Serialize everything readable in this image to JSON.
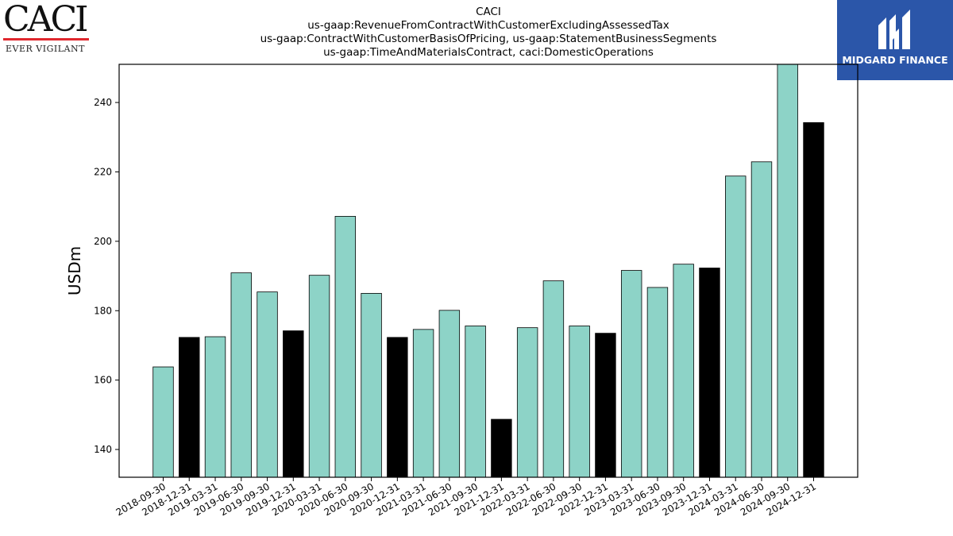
{
  "logos": {
    "left": {
      "wordmark": "CACI",
      "tagline": "EVER VIGILANT",
      "rule_color": "#e0282e"
    },
    "right": {
      "name": "MIDGARD FINANCE",
      "bg_color": "#2b56a9"
    }
  },
  "chart_data": {
    "type": "bar",
    "title_lines": [
      "CACI",
      "us-gaap:RevenueFromContractWithCustomerExcludingAssessedTax",
      "us-gaap:ContractWithCustomerBasisOfPricing, us-gaap:StatementBusinessSegments",
      "us-gaap:TimeAndMaterialsContract, caci:DomesticOperations"
    ],
    "ylabel": "USDm",
    "ylim": [
      132,
      251
    ],
    "yticks": [
      140,
      160,
      180,
      200,
      220,
      240
    ],
    "grid": false,
    "colors": {
      "quarter": "#8dd3c7",
      "year_end": "#000000",
      "edge": "#000000"
    },
    "categories": [
      "2018-09-30",
      "2018-12-31",
      "2019-03-31",
      "2019-06-30",
      "2019-09-30",
      "2019-12-31",
      "2020-03-31",
      "2020-06-30",
      "2020-09-30",
      "2020-12-31",
      "2021-03-31",
      "2021-06-30",
      "2021-09-30",
      "2021-12-31",
      "2022-03-31",
      "2022-06-30",
      "2022-09-30",
      "2022-12-31",
      "2023-03-31",
      "2023-06-30",
      "2023-09-30",
      "2023-12-31",
      "2024-03-31",
      "2024-06-30",
      "2024-09-30",
      "2024-12-31"
    ],
    "values": [
      163.8,
      172.3,
      172.5,
      190.9,
      185.4,
      174.2,
      190.2,
      207.2,
      185.0,
      172.3,
      174.6,
      180.1,
      175.6,
      148.7,
      175.1,
      188.6,
      175.6,
      173.5,
      191.6,
      186.7,
      193.4,
      192.3,
      218.8,
      222.9,
      251.5,
      234.2
    ],
    "year_end": [
      false,
      true,
      false,
      false,
      false,
      true,
      false,
      false,
      false,
      true,
      false,
      false,
      false,
      true,
      false,
      false,
      false,
      true,
      false,
      false,
      false,
      true,
      false,
      false,
      false,
      true
    ]
  }
}
